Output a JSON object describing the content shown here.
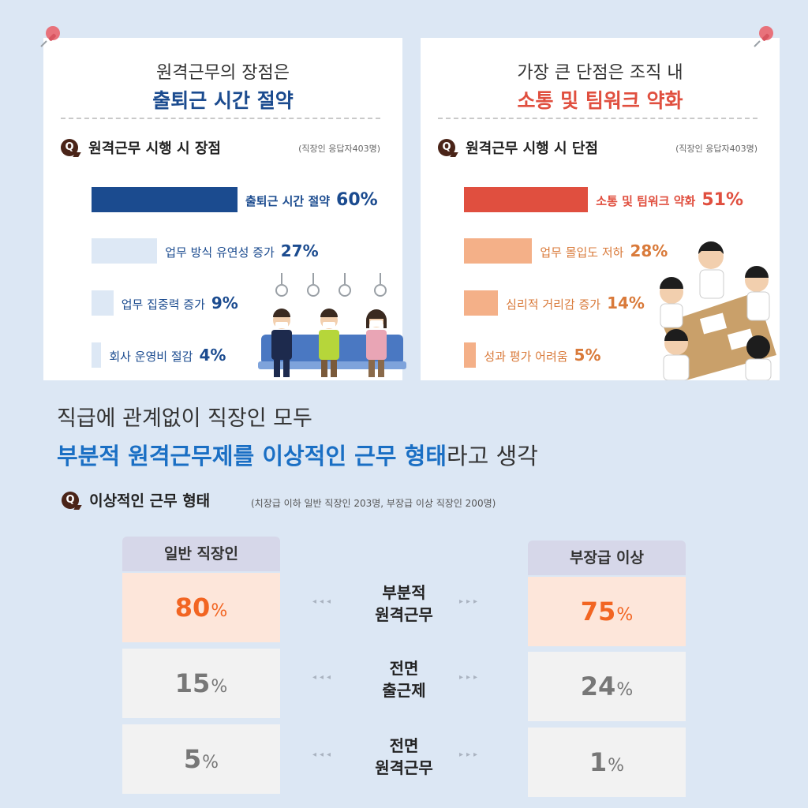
{
  "panels": [
    {
      "headline": "원격근무의 장점은",
      "highlight": "출퇴근 시간 절약",
      "question": "원격근무 시행 시 장점",
      "note": "(직장인 응답자403명)",
      "accent": "#1b4b8f",
      "light": "#dde8f5"
    },
    {
      "headline": "가장 큰 단점은 조직 내",
      "highlight": "소통 및 팀워크 약화",
      "question": "원격근무 시행 시 단점",
      "note": "(직장인 응답자403명)",
      "accent": "#e04f3f",
      "light": "#f4b088"
    }
  ],
  "chart_data": [
    {
      "type": "bar",
      "categories": [
        "출퇴근 시간 절약",
        "업무 방식 유연성 증가",
        "업무 집중력 증가",
        "회사 운영비 절감"
      ],
      "values": [
        60,
        27,
        9,
        4
      ],
      "value_labels": [
        "60%",
        "27%",
        "9%",
        "4%"
      ],
      "title": "원격근무 시행 시 장점"
    },
    {
      "type": "bar",
      "categories": [
        "소통 및 팀워크 약화",
        "업무 몰입도 저하",
        "심리적 거리감 증가",
        "성과 평가 어려움"
      ],
      "values": [
        51,
        28,
        14,
        5
      ],
      "value_labels": [
        "51%",
        "28%",
        "14%",
        "5%"
      ],
      "title": "원격근무 시행 시 단점"
    },
    {
      "type": "table",
      "title": "이상적인 근무 형태",
      "note": "(치장급 이하 일반 직장인 203명, 부장급 이상 직장인 200명)",
      "columns": [
        "일반 직장인",
        "부장급 이상"
      ],
      "rows": [
        "부분적 원격근무",
        "전면 출근제",
        "전면 원격근무"
      ],
      "values": [
        [
          80,
          75
        ],
        [
          15,
          24
        ],
        [
          5,
          1
        ]
      ]
    }
  ],
  "headline": {
    "line1": "직급에 관계없이 직장인 모두",
    "line2_em": "부분적 원격근무제를 이상적인 근무 형태",
    "line2_rest": "라고 생각"
  },
  "table": {
    "q_icon": "Q",
    "question": "이상적인 근무 형태",
    "note": "(치장급 이하 일반 직장인 203명, 부장급 이상 직장인 200명)",
    "col1": "일반 직장인",
    "col2": "부장급 이상",
    "rows": [
      {
        "l1": "부분적",
        "l2": "원격근무",
        "a": "80",
        "b": "75"
      },
      {
        "l1": "전면",
        "l2": "출근제",
        "a": "15",
        "b": "24"
      },
      {
        "l1": "전면",
        "l2": "원격근무",
        "a": "5",
        "b": "1"
      }
    ],
    "pct": "%",
    "highlight_bg": "#fde6da",
    "highlight_text": "#f26522",
    "normal_bg": "#f2f2f2",
    "normal_text": "#777777"
  },
  "icons": [
    "pushpin-icon",
    "q-bubble-icon",
    "commuters-illustration",
    "meeting-illustration",
    "arrow-left-icon",
    "arrow-right-icon"
  ]
}
